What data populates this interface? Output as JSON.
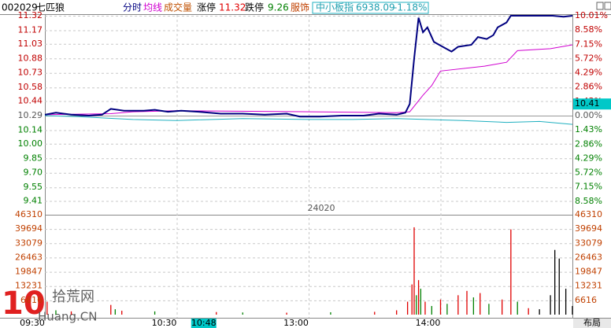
{
  "header": {
    "code": "002029",
    "stock_name": "七匹狼",
    "limit_up_label": "涨停",
    "limit_up": 11.32,
    "limit_down_label": "跌停",
    "limit_down": 9.26,
    "sector": "服饰",
    "index_value": 6938.09,
    "index_change": {
      "value": -1.18,
      "label": "-1.18%"
    }
  },
  "cursor": {
    "price": 10.41,
    "volume": 24020,
    "time": "10:48"
  },
  "footer": {
    "layout_button": "布局"
  },
  "watermark": {
    "logo": "10",
    "site": "拾荒网",
    "domain": "Huang.CN"
  },
  "chart_data": [
    {
      "type": "line",
      "ylim": [
        9.26,
        11.32
      ],
      "y2lim": [
        -10.01,
        10.01
      ],
      "yticks": [
        11.32,
        11.17,
        11.03,
        10.88,
        10.73,
        10.58,
        10.44,
        10.29,
        10.14,
        {
          "value": 10.0,
          "label": "10.00"
        },
        9.85,
        {
          "value": 9.7,
          "label": "9.70"
        },
        9.55,
        9.41
      ],
      "y2ticks": [
        {
          "value": 10.01,
          "label": "10.01%"
        },
        {
          "value": 8.58,
          "label": "8.58%"
        },
        {
          "value": 7.15,
          "label": "7.15%"
        },
        {
          "value": 5.72,
          "label": "5.72%"
        },
        {
          "value": 4.29,
          "label": "4.29%"
        },
        {
          "value": 2.86,
          "label": "2.86%"
        },
        {
          "value": 1.43,
          "label": "1.43%"
        },
        {
          "value": 0,
          "label": "0.00%"
        },
        {
          "value": -1.43,
          "label": "1.43%"
        },
        {
          "value": -2.86,
          "label": "2.86%"
        },
        {
          "value": -4.29,
          "label": "4.29%"
        },
        {
          "value": -5.72,
          "label": "5.72%"
        },
        {
          "value": -7.15,
          "label": "7.15%"
        },
        {
          "value": -8.58,
          "label": "8.58%"
        }
      ],
      "xticks": [
        "09:30",
        "10:30",
        "13:00",
        "14:00"
      ],
      "grid": true,
      "series": [
        {
          "name": "分时",
          "color": "#000080",
          "x": [
            "09:30",
            "09:35",
            "09:42",
            "09:50",
            "09:56",
            "10:00",
            "10:06",
            "10:15",
            "10:20",
            "10:26",
            "10:32",
            "10:40",
            "10:50",
            "11:00",
            "11:10",
            "11:20",
            "11:26",
            "13:05",
            "13:15",
            "13:25",
            "13:32",
            "13:40",
            "13:44",
            "13:46",
            "13:48",
            "13:50",
            "13:52",
            "13:54",
            "13:57",
            "14:01",
            "14:05",
            "14:08",
            "14:14",
            "14:17",
            "14:21",
            "14:24",
            "14:26",
            "14:30",
            "14:32",
            "14:51",
            "14:56",
            "15:00"
          ],
          "values": [
            10.3,
            10.32,
            10.3,
            10.29,
            10.3,
            10.36,
            10.34,
            10.34,
            10.35,
            10.33,
            10.34,
            10.33,
            10.31,
            10.31,
            10.3,
            10.31,
            10.28,
            10.28,
            10.29,
            10.29,
            10.31,
            10.3,
            10.32,
            10.41,
            10.88,
            11.3,
            11.15,
            11.2,
            11.05,
            11.0,
            10.95,
            11.0,
            11.02,
            11.1,
            11.08,
            11.12,
            11.2,
            11.25,
            11.32,
            11.32,
            11.31,
            11.32
          ]
        },
        {
          "name": "均线",
          "color": "#d000d0",
          "x": [
            "09:30",
            "10:00",
            "10:10",
            "10:30",
            "11:30",
            "13:40",
            "13:46",
            "13:52",
            "13:56",
            "14:00",
            "14:20",
            "14:30",
            "14:35",
            "14:50",
            "15:00"
          ],
          "values": [
            10.3,
            10.31,
            10.33,
            10.34,
            10.33,
            10.32,
            10.33,
            10.5,
            10.6,
            10.75,
            10.8,
            10.84,
            10.96,
            10.98,
            11.02
          ]
        },
        {
          "name": "中小板指",
          "color": "#20b0c0",
          "x": [
            "09:30",
            "09:45",
            "10:10",
            "10:30",
            "11:00",
            "11:30",
            "13:20",
            "13:40",
            "14:10",
            "14:30",
            "14:45",
            "15:00"
          ],
          "values": [
            10.29,
            10.28,
            10.25,
            10.24,
            10.26,
            10.25,
            10.25,
            10.26,
            10.24,
            10.22,
            10.23,
            10.2
          ]
        }
      ]
    },
    {
      "type": "bar",
      "ylim": [
        0,
        46310
      ],
      "yticks": [
        46310,
        39694,
        33079,
        26463,
        19847,
        13231,
        6616
      ],
      "x": [
        "09:31",
        "09:35",
        "09:42",
        "10:00",
        "10:02",
        "10:05",
        "10:20",
        "10:48",
        "11:00",
        "11:20",
        "13:10",
        "13:30",
        "13:40",
        "13:45",
        "13:47",
        "13:48",
        "13:49",
        "13:50",
        "13:51",
        "13:53",
        "13:56",
        "14:00",
        "14:03",
        "14:08",
        "14:12",
        "14:15",
        "14:18",
        "14:22",
        "14:28",
        "14:32",
        "14:35",
        "14:40",
        "14:45",
        "14:50",
        "14:52",
        "14:54",
        "14:57",
        "15:00"
      ],
      "values": [
        6000,
        2000,
        1500,
        4500,
        2500,
        1800,
        1500,
        1200,
        1000,
        900,
        1100,
        1300,
        2000,
        6000,
        14000,
        40500,
        9000,
        16000,
        12000,
        6000,
        4000,
        7000,
        5000,
        9000,
        11000,
        8000,
        10000,
        5000,
        7000,
        39500,
        6000,
        3000,
        2500,
        9000,
        30000,
        26000,
        12000,
        4000
      ],
      "colors": [
        "#e00000",
        "#008000",
        "#e00000",
        "#e00000",
        "#008000",
        "#e00000",
        "#008000",
        "#e00000",
        "#008000",
        "#e00000",
        "#008000",
        "#e00000",
        "#e00000",
        "#e00000",
        "#e00000",
        "#e00000",
        "#008000",
        "#e00000",
        "#008000",
        "#e00000",
        "#008000",
        "#e00000",
        "#008000",
        "#e00000",
        "#e00000",
        "#008000",
        "#e00000",
        "#008000",
        "#e00000",
        "#e00000",
        "#008000",
        "#e00000",
        "#000000",
        "#000000",
        "#000000",
        "#000000",
        "#000000",
        "#000000"
      ]
    }
  ]
}
